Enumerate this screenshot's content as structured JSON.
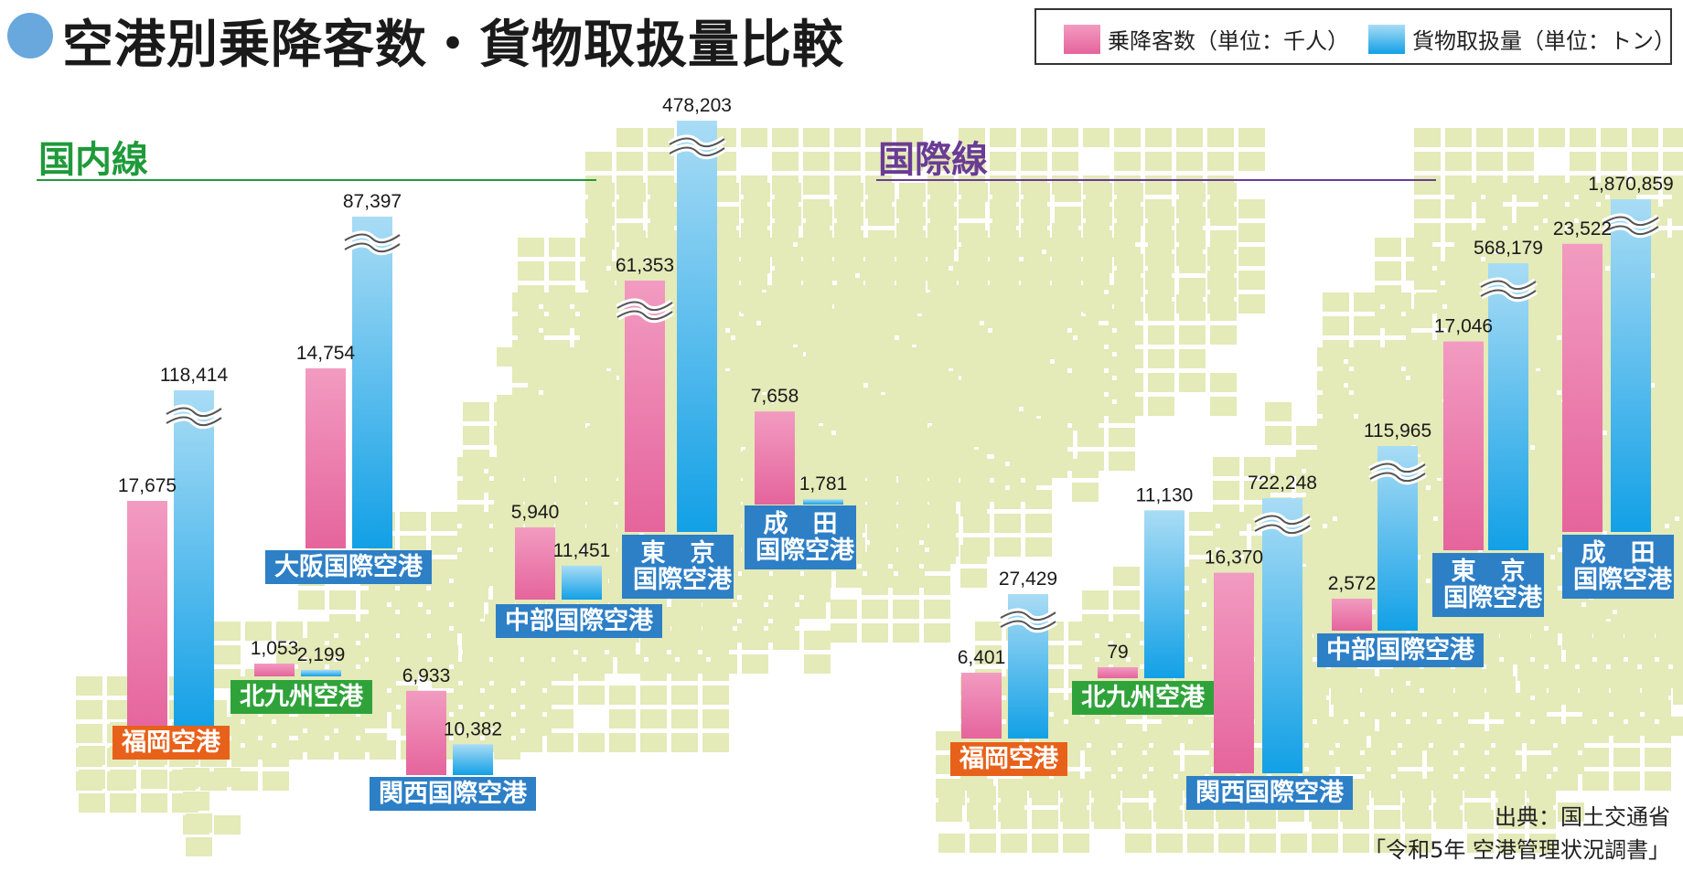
{
  "title": "空港別乗降客数・貨物取扱量比較",
  "legend": {
    "passengers": "乗降客数（単位：千人）",
    "cargo": "貨物取扱量（単位：トン）"
  },
  "colors": {
    "passengers": "#ec79aa",
    "cargo": "#21a6e8",
    "domestic": "#1f9a3a",
    "international": "#6a3c94",
    "map": "#e4eab8"
  },
  "sections": {
    "domestic": "国内線",
    "international": "国際線"
  },
  "source": {
    "line1": "出典：国土交通省",
    "line2": "「令和5年 空港管理状況調書」"
  },
  "chart_data": [
    {
      "type": "bar",
      "title": "国内線",
      "legend": [
        "乗降客数（単位：千人）",
        "貨物取扱量（単位：トン）"
      ],
      "categories": [
        "福岡空港",
        "大阪国際空港",
        "北九州空港",
        "関西国際空港",
        "中部国際空港",
        "東京国際空港",
        "成田国際空港"
      ],
      "series": [
        {
          "name": "乗降客数（単位：千人）",
          "values": [
            17675,
            14754,
            1053,
            6933,
            5940,
            61353,
            7658
          ],
          "labels": [
            "17,675",
            "14,754",
            "1,053",
            "6,933",
            "5,940",
            "61,353",
            "7,658"
          ]
        },
        {
          "name": "貨物取扱量（単位：トン）",
          "values": [
            118414,
            87397,
            2199,
            10382,
            11451,
            478203,
            1781
          ],
          "labels": [
            "118,414",
            "87,397",
            "2,199",
            "10,382",
            "11,451",
            "478,203",
            "1,781"
          ]
        }
      ],
      "axis_break": {
        "passengers": [
          61353
        ],
        "cargo": [
          118414,
          87397,
          478203
        ]
      }
    },
    {
      "type": "bar",
      "title": "国際線",
      "legend": [
        "乗降客数（単位：千人）",
        "貨物取扱量（単位：トン）"
      ],
      "categories": [
        "福岡空港",
        "北九州空港",
        "関西国際空港",
        "中部国際空港",
        "東京国際空港",
        "成田国際空港"
      ],
      "series": [
        {
          "name": "乗降客数（単位：千人）",
          "values": [
            6401,
            79,
            16370,
            2572,
            17046,
            23522
          ],
          "labels": [
            "6,401",
            "79",
            "16,370",
            "2,572",
            "17,046",
            "23,522"
          ]
        },
        {
          "name": "貨物取扱量（単位：トン）",
          "values": [
            27429,
            11130,
            722248,
            115965,
            568179,
            1870859
          ],
          "labels": [
            "27,429",
            "11,130",
            "722,248",
            "115,965",
            "568,179",
            "1,870,859"
          ]
        }
      ],
      "axis_break": {
        "passengers": [],
        "cargo": [
          27429,
          722248,
          115965,
          568179,
          1870859
        ]
      }
    }
  ],
  "airport_labels": {
    "domestic": {
      "fukuoka": "福岡空港",
      "osaka": "大阪国際空港",
      "kitakyushu": "北九州空港",
      "kansai": "関西国際空港",
      "chubu": "中部国際空港",
      "tokyo_line1": "東　京",
      "tokyo_line2": "国際空港",
      "narita_line1": "成　田",
      "narita_line2": "国際空港"
    },
    "international": {
      "fukuoka": "福岡空港",
      "kitakyushu": "北九州空港",
      "kansai": "関西国際空港",
      "chubu": "中部国際空港",
      "tokyo_line1": "東　京",
      "tokyo_line2": "国際空港",
      "narita_line1": "成　田",
      "narita_line2": "国際空港"
    }
  }
}
